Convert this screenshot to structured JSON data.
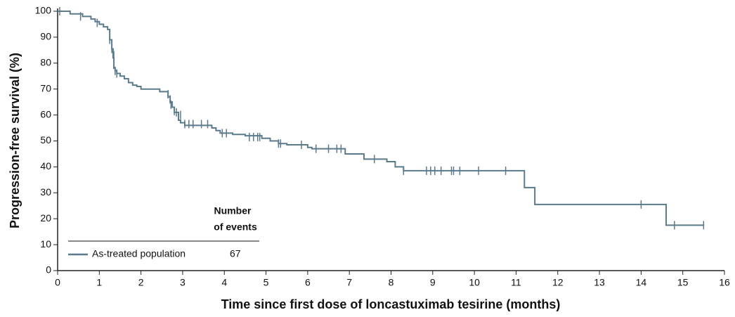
{
  "chart_data": {
    "type": "step",
    "xlabel": "Time since first dose of loncastuximab tesirine (months)",
    "ylabel": "Progression-free survival (%)",
    "xlim": [
      0,
      16
    ],
    "ylim": [
      0,
      100
    ],
    "xticks": [
      0,
      1,
      2,
      3,
      4,
      5,
      6,
      7,
      8,
      9,
      10,
      11,
      12,
      13,
      14,
      15,
      16
    ],
    "yticks": [
      0,
      10,
      20,
      30,
      40,
      50,
      60,
      70,
      80,
      90,
      100
    ],
    "events_header": [
      "Number",
      "of events"
    ],
    "series": [
      {
        "name": "As-treated population",
        "color": "#5b7b8c",
        "events": 67,
        "x": [
          0,
          0.3,
          0.6,
          0.8,
          0.9,
          1.0,
          1.1,
          1.2,
          1.25,
          1.3,
          1.33,
          1.35,
          1.38,
          1.42,
          1.5,
          1.6,
          1.7,
          1.8,
          1.9,
          2.0,
          2.45,
          2.65,
          2.7,
          2.75,
          2.8,
          2.9,
          2.95,
          3.05,
          3.7,
          3.8,
          3.9,
          4.2,
          4.5,
          4.9,
          5.1,
          5.3,
          5.5,
          6.0,
          6.1,
          6.9,
          7.35,
          7.9,
          8.1,
          8.3,
          11.2,
          11.45,
          14.6,
          15.5
        ],
        "values": [
          100,
          99,
          98,
          97,
          96,
          95,
          94,
          93,
          89,
          85.5,
          82,
          78,
          77,
          76,
          75,
          74,
          72.5,
          71.5,
          71,
          70,
          69,
          67,
          65,
          63,
          61,
          58,
          57,
          56,
          55,
          54,
          53,
          52.5,
          52,
          51,
          50,
          49,
          48.5,
          47.5,
          47,
          45,
          43,
          42,
          40,
          38.5,
          32,
          25.5,
          17.5,
          17.5
        ],
        "censor_x": [
          0.05,
          0.55,
          0.95,
          1.25,
          1.3,
          1.35,
          1.38,
          1.42,
          2.65,
          2.7,
          2.72,
          2.8,
          2.85,
          2.95,
          3.05,
          3.15,
          3.25,
          3.45,
          3.6,
          3.95,
          4.05,
          4.6,
          4.7,
          4.8,
          4.85,
          5.3,
          5.35,
          5.85,
          6.2,
          6.5,
          6.7,
          6.8,
          7.6,
          8.3,
          8.85,
          8.95,
          9.05,
          9.2,
          9.45,
          9.5,
          9.65,
          10.1,
          10.75,
          14.0,
          14.8,
          15.5
        ],
        "censor_values": [
          100,
          98,
          95.5,
          89,
          85.5,
          83,
          77,
          76,
          68,
          66,
          64,
          61.5,
          61,
          60,
          56.5,
          56.5,
          56.5,
          56.5,
          56.5,
          53,
          53,
          51.5,
          51.5,
          51.5,
          51.5,
          49,
          49,
          48.5,
          47,
          47,
          47,
          47,
          43,
          38.5,
          38.5,
          38.5,
          38.5,
          38.5,
          38.5,
          38.5,
          38.5,
          38.5,
          38.5,
          25.5,
          17.5,
          17.5
        ]
      }
    ]
  }
}
